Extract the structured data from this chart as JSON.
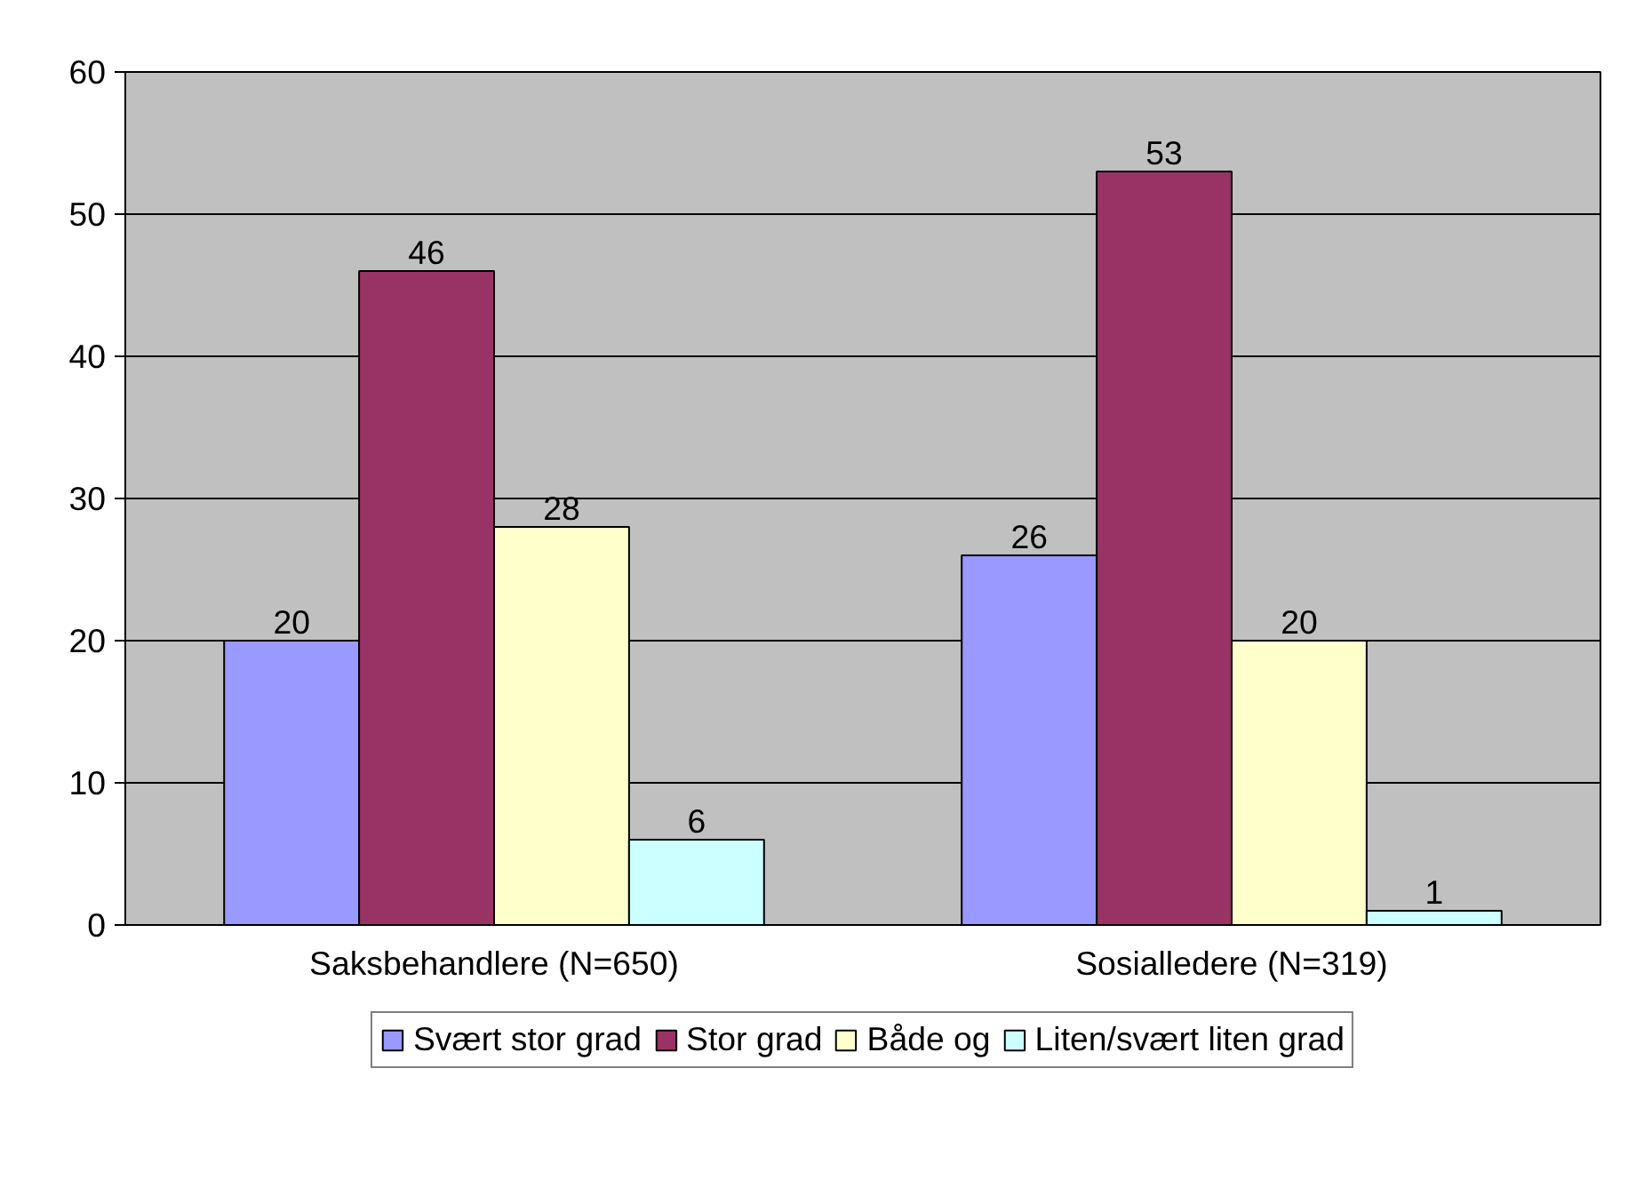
{
  "chart_data": {
    "type": "bar",
    "categories": [
      "Saksbehandlere (N=650)",
      "Sosialledere (N=319)"
    ],
    "series": [
      {
        "name": "Svært stor grad",
        "color": "#9999ff",
        "values": [
          20,
          26
        ]
      },
      {
        "name": "Stor grad",
        "color": "#993366",
        "values": [
          46,
          53
        ]
      },
      {
        "name": "Både og",
        "color": "#ffffcc",
        "values": [
          28,
          20
        ]
      },
      {
        "name": "Liten/svært liten grad",
        "color": "#ccffff",
        "values": [
          6,
          1
        ]
      }
    ],
    "ylim": [
      0,
      60
    ],
    "yticks": [
      0,
      10,
      20,
      30,
      40,
      50,
      60
    ],
    "grid": "y",
    "legend": "bottom",
    "data_labels": true
  }
}
